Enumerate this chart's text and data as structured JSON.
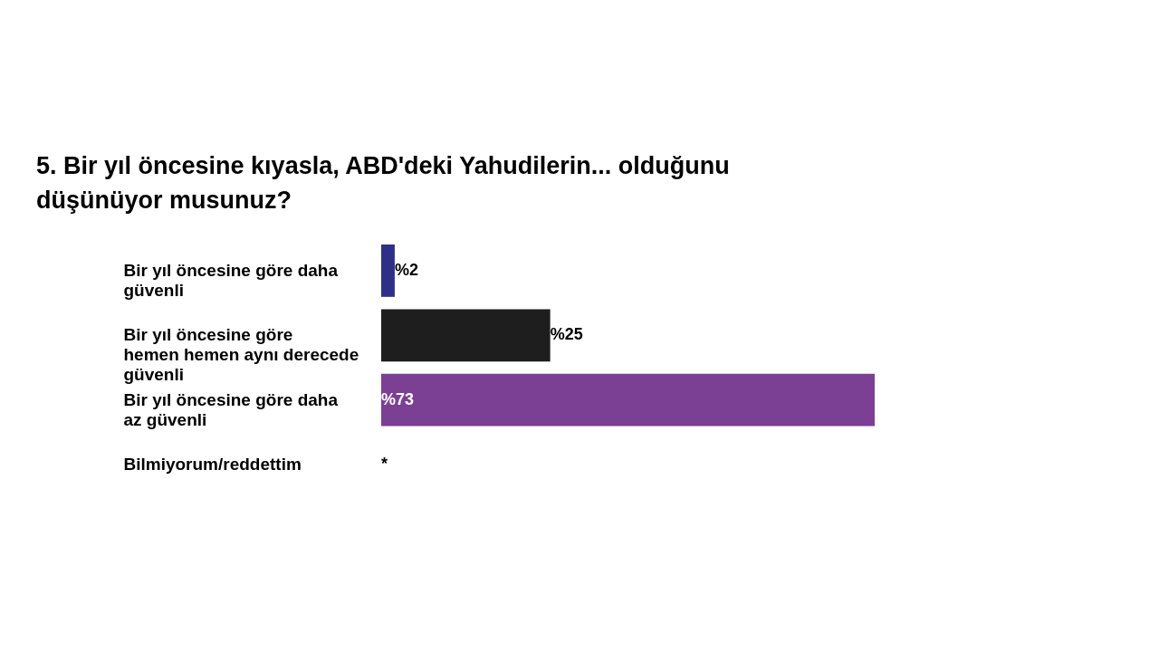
{
  "chart_data": {
    "type": "bar",
    "orientation": "horizontal",
    "title": "5.  Bir yıl öncesine kıyasla, ABD'deki Yahudilerin... olduğunu düşünüyor musunuz?",
    "categories": [
      "Bir yıl öncesine göre daha güvenli",
      "Bir yıl öncesine göre hemen hemen aynı derecede güvenli",
      "Bir yıl öncesine göre daha az güvenli",
      "Bilmiyorum/reddettim"
    ],
    "values": [
      2,
      25,
      73,
      null
    ],
    "colors": [
      "#2e3087",
      "#1e1e1e",
      "#7b3f93",
      "#7b3f93"
    ],
    "value_labels": [
      "%2",
      "%25",
      "%73",
      "*"
    ]
  }
}
